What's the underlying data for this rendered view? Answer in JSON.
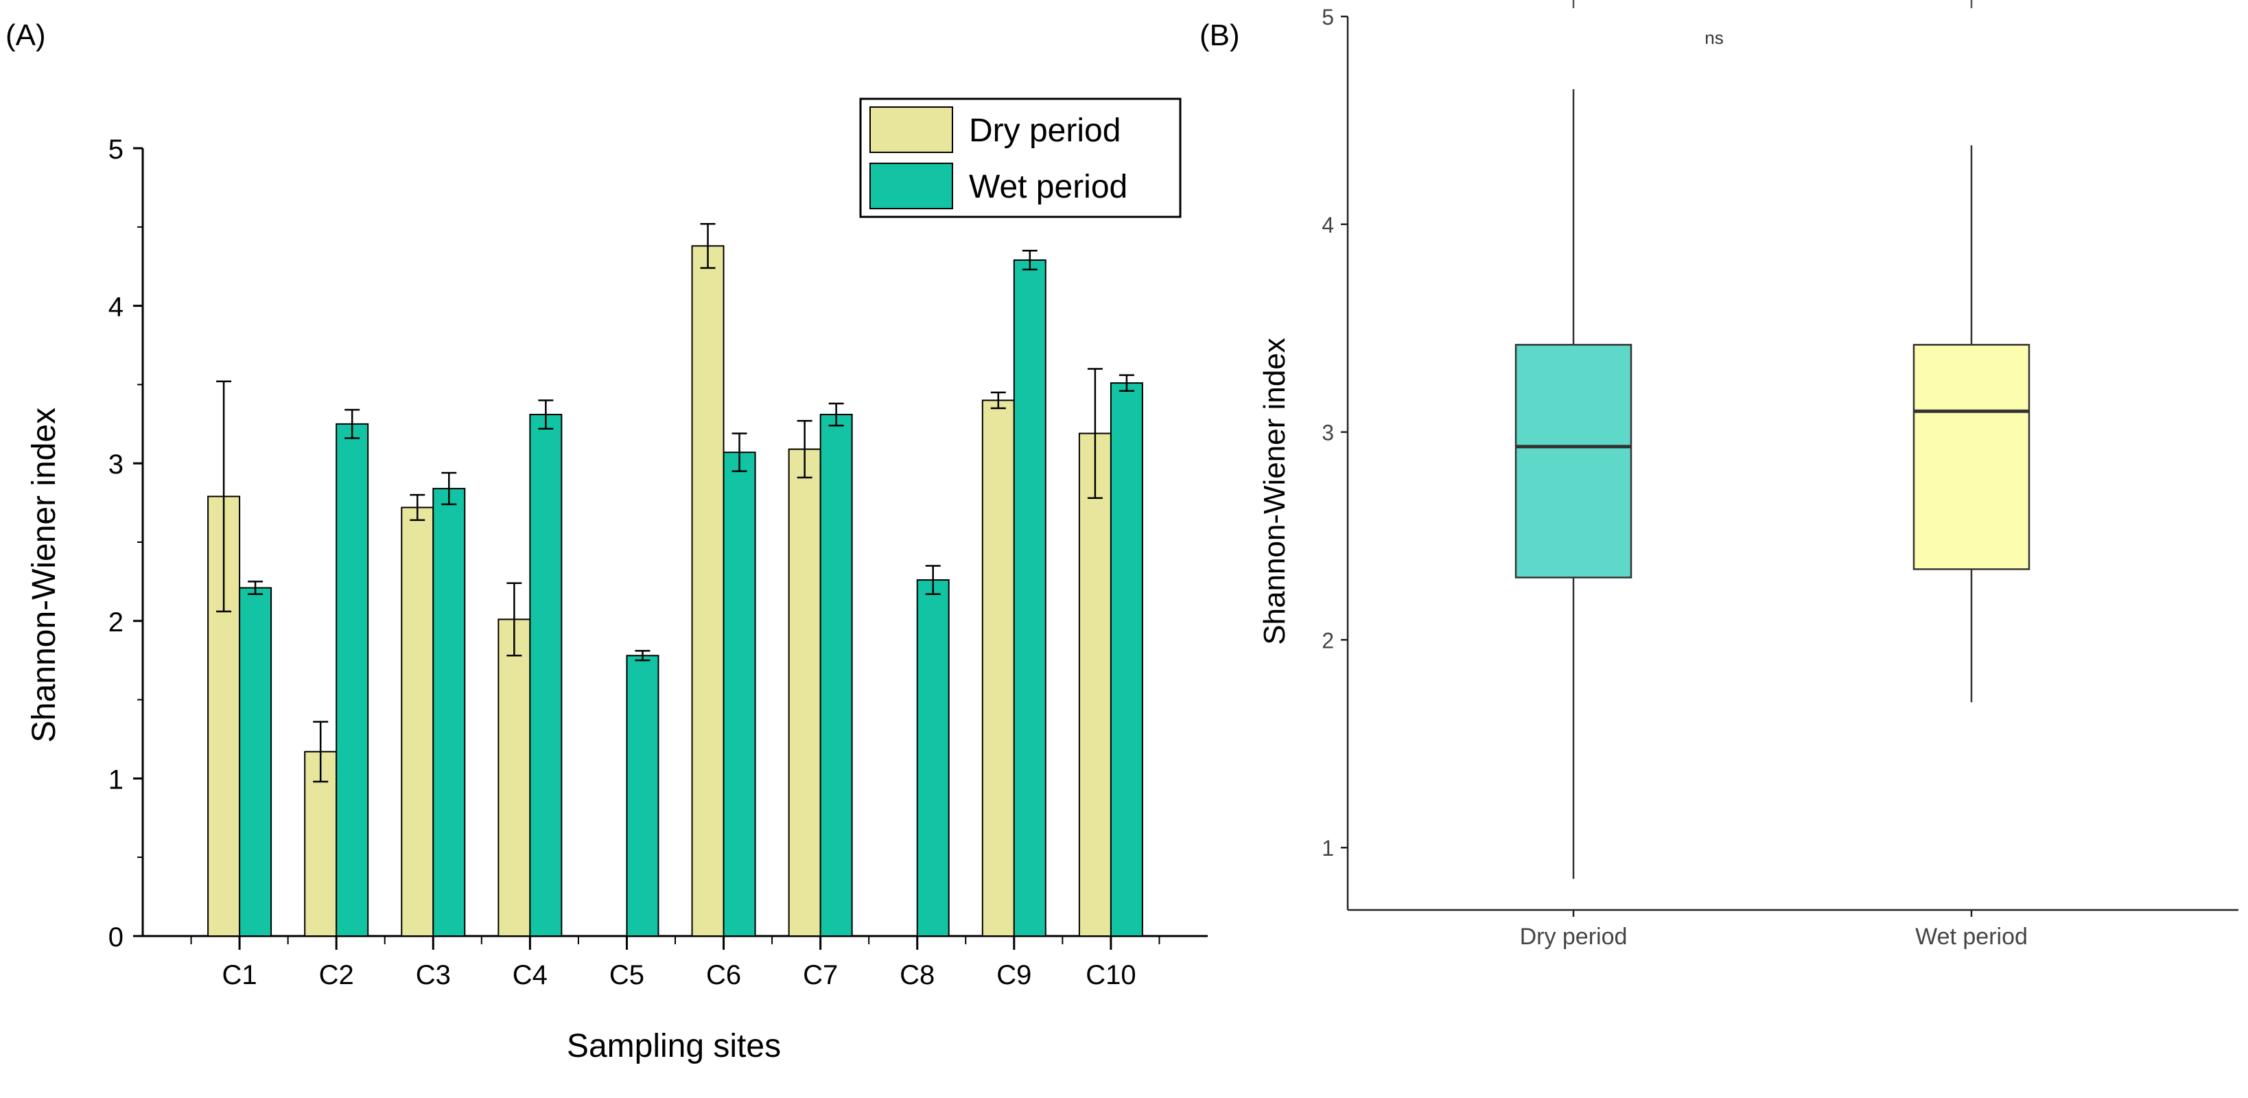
{
  "chart_data": [
    {
      "panel": "(A)",
      "type": "bar",
      "xlabel": "Sampling sites",
      "ylabel": "Shannon-Wiener index",
      "ylim": [
        0,
        5
      ],
      "yticks": [
        "0",
        "1",
        "2",
        "3",
        "4",
        "5"
      ],
      "categories": [
        "C1",
        "C2",
        "C3",
        "C4",
        "C5",
        "C6",
        "C7",
        "C8",
        "C9",
        "C10"
      ],
      "legend_position": "top-right",
      "series": [
        {
          "name": "Dry period",
          "color": "#e8e69c",
          "values": [
            2.79,
            1.17,
            2.72,
            2.01,
            null,
            4.38,
            3.09,
            null,
            3.4,
            3.19
          ],
          "errors": [
            0.73,
            0.19,
            0.08,
            0.23,
            null,
            0.14,
            0.18,
            null,
            0.05,
            0.41
          ]
        },
        {
          "name": "Wet period",
          "color": "#12c4a3",
          "values": [
            2.21,
            3.25,
            2.84,
            3.31,
            1.78,
            3.07,
            3.31,
            2.26,
            4.29,
            3.51
          ],
          "errors": [
            0.04,
            0.09,
            0.1,
            0.09,
            0.03,
            0.12,
            0.07,
            0.09,
            0.06,
            0.05
          ]
        }
      ]
    },
    {
      "panel": "(B)",
      "type": "box",
      "ylabel": "Shannon-Wiener index",
      "ylim": [
        0.7,
        5
      ],
      "yticks": [
        "1",
        "2",
        "3",
        "4",
        "5"
      ],
      "categories": [
        "Dry period",
        "Wet period"
      ],
      "significance": "ns",
      "boxes": [
        {
          "name": "Dry period",
          "color": "#5ed8c8",
          "min": 0.85,
          "q1": 2.3,
          "median": 2.93,
          "q3": 3.42,
          "max": 4.65
        },
        {
          "name": "Wet period",
          "color": "#fdfdb0",
          "min": 1.7,
          "q1": 2.34,
          "median": 3.1,
          "q3": 3.42,
          "max": 4.38
        }
      ]
    }
  ]
}
